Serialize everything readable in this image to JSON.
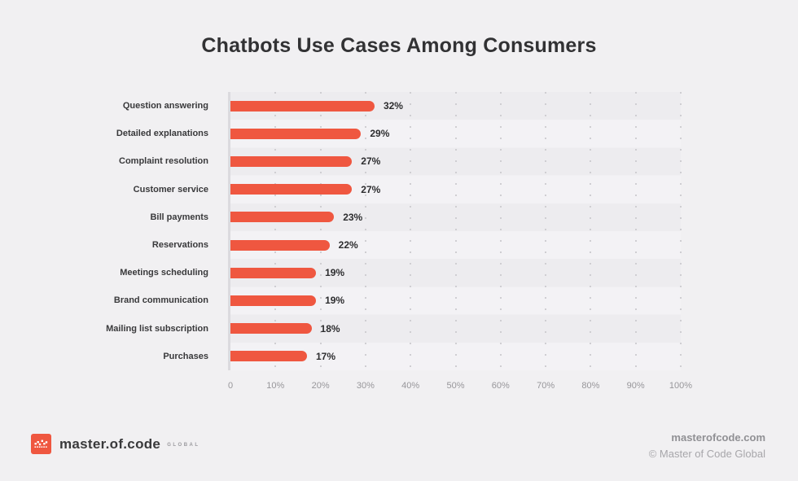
{
  "title": "Chatbots Use Cases Among Consumers",
  "chart_data": {
    "type": "bar",
    "orientation": "horizontal",
    "title": "Chatbots Use Cases Among Consumers",
    "categories": [
      "Question answering",
      "Detailed explanations",
      "Complaint resolution",
      "Customer service",
      "Bill payments",
      "Reservations",
      "Meetings scheduling",
      "Brand communication",
      "Mailing list subscription",
      "Purchases"
    ],
    "values": [
      32,
      29,
      27,
      27,
      23,
      22,
      19,
      19,
      18,
      17
    ],
    "value_labels": [
      "32%",
      "29%",
      "27%",
      "27%",
      "23%",
      "22%",
      "19%",
      "19%",
      "18%",
      "17%"
    ],
    "x_tick_labels": [
      "0",
      "10%",
      "20%",
      "30%",
      "40%",
      "50%",
      "60%",
      "70%",
      "80%",
      "90%",
      "100%"
    ],
    "xlim": [
      0,
      100
    ],
    "grid": "vertical-dotted",
    "legend": "none",
    "bar_color": "#ef5740"
  },
  "colors": {
    "accent": "#ef5740",
    "background": "#f1f0f2",
    "title_text": "#323234",
    "category_text": "#39393b",
    "value_text": "#2d2d2f",
    "tick_text": "#97969a"
  },
  "footer": {
    "brand": "master.of.code",
    "brand_suffix": "GLOBAL",
    "website": "masterofcode.com",
    "copyright": "© Master of Code Global"
  }
}
